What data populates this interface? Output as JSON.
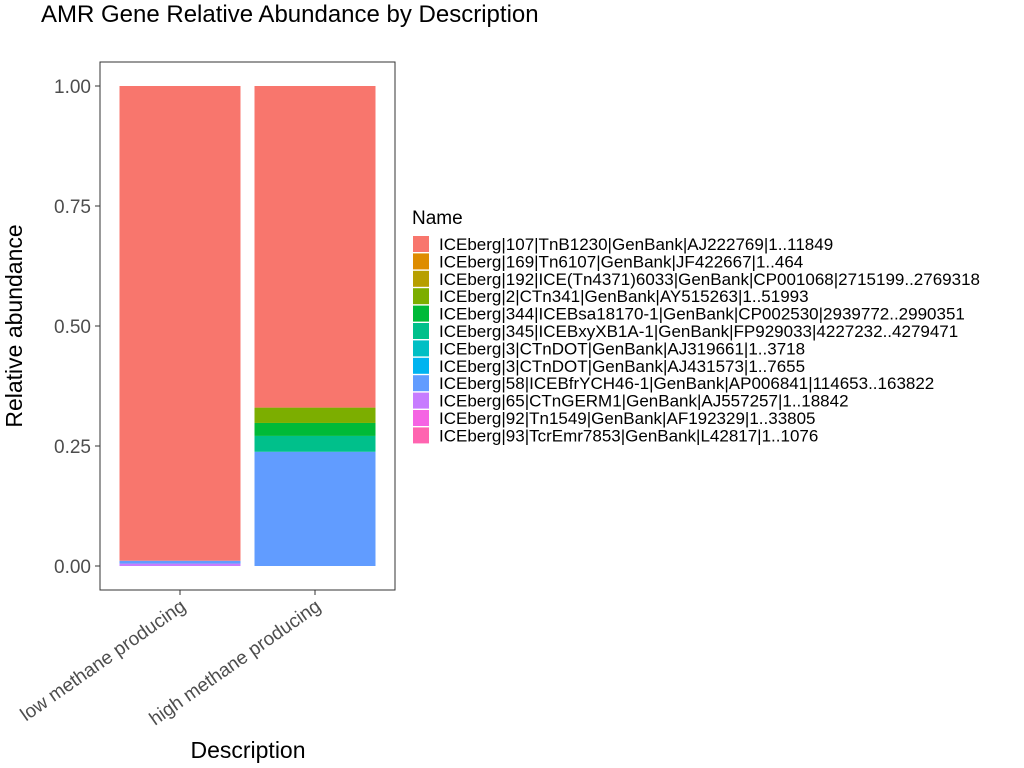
{
  "chart_data": {
    "type": "bar",
    "stacked": true,
    "title": "AMR Gene Relative Abundance by Description",
    "xlabel": "Description",
    "ylabel": "Relative abundance",
    "ylim": [
      0,
      1
    ],
    "yticks": [
      "0.00",
      "0.25",
      "0.50",
      "0.75",
      "1.00"
    ],
    "grid": false,
    "legend_title": "Name",
    "legend_position": "right",
    "categories": [
      "low methane producing",
      "high methane producing"
    ],
    "series": [
      {
        "name": "ICEberg|107|TnB1230|GenBank|AJ222769|1..11849",
        "color": "#F8766D",
        "values": [
          0.989,
          0.67
        ]
      },
      {
        "name": "ICEberg|169|Tn6107|GenBank|JF422667|1..464",
        "color": "#DE8C00",
        "values": [
          0,
          0
        ]
      },
      {
        "name": "ICEberg|192|ICE(Tn4371)6033|GenBank|CP001068|2715199..2769318",
        "color": "#B79F00",
        "values": [
          0,
          0
        ]
      },
      {
        "name": "ICEberg|2|CTn341|GenBank|AY515263|1..51993",
        "color": "#7CAE00",
        "values": [
          0,
          0.032
        ]
      },
      {
        "name": "ICEberg|344|ICEBsa18170-1|GenBank|CP002530|2939772..2990351",
        "color": "#00BA38",
        "values": [
          0,
          0.027
        ]
      },
      {
        "name": "ICEberg|345|ICEBxyXB1A-1|GenBank|FP929033|4227232..4279471",
        "color": "#00C08B",
        "values": [
          0,
          0.033
        ]
      },
      {
        "name": "ICEberg|3|CTnDOT|GenBank|AJ319661|1..3718",
        "color": "#00BFC4",
        "values": [
          0,
          0
        ]
      },
      {
        "name": "ICEberg|3|CTnDOT|GenBank|AJ431573|1..7655",
        "color": "#00B4F0",
        "values": [
          0,
          0
        ]
      },
      {
        "name": "ICEberg|58|ICEBfrYCH46-1|GenBank|AP006841|114653..163822",
        "color": "#619CFF",
        "values": [
          0.006,
          0.238
        ]
      },
      {
        "name": "ICEberg|65|CTnGERM1|GenBank|AJ557257|1..18842",
        "color": "#C77CFF",
        "values": [
          0.005,
          0
        ]
      },
      {
        "name": "ICEberg|92|Tn1549|GenBank|AF192329|1..33805",
        "color": "#F564E3",
        "values": [
          0,
          0
        ]
      },
      {
        "name": "ICEberg|93|TcrEmr7853|GenBank|L42817|1..1076",
        "color": "#FF64B0",
        "values": [
          0,
          0
        ]
      }
    ]
  }
}
